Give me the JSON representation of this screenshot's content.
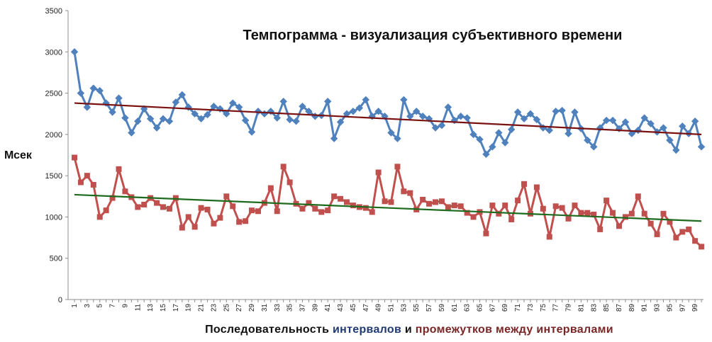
{
  "chart_data": {
    "type": "line",
    "title": "Темпограмма - визуализация субъективного времени",
    "ylabel": "Мсек",
    "xlabel_parts": [
      {
        "text": "Последовательность ",
        "color": "#111111"
      },
      {
        "text": "интервалов",
        "color": "#1f3a73"
      },
      {
        "text": " и ",
        "color": "#111111"
      },
      {
        "text": "промежутков между интервалами",
        "color": "#7a2626"
      }
    ],
    "ylim": [
      0,
      3500
    ],
    "yticks": [
      0,
      500,
      1000,
      1500,
      2000,
      2500,
      3000,
      3500
    ],
    "x_range": [
      1,
      100
    ],
    "xtick_step": 2,
    "grid": false,
    "legend": "none",
    "series": [
      {
        "color": "#4f81bd",
        "marker": "diamond",
        "values": [
          3000,
          2500,
          2330,
          2560,
          2530,
          2380,
          2270,
          2440,
          2200,
          2020,
          2160,
          2310,
          2190,
          2080,
          2190,
          2160,
          2390,
          2480,
          2330,
          2250,
          2190,
          2240,
          2340,
          2310,
          2250,
          2380,
          2330,
          2170,
          2030,
          2280,
          2250,
          2280,
          2200,
          2400,
          2180,
          2160,
          2340,
          2280,
          2220,
          2230,
          2400,
          1950,
          2150,
          2250,
          2280,
          2320,
          2420,
          2220,
          2280,
          2220,
          2020,
          1950,
          2420,
          2220,
          2280,
          2220,
          2190,
          2080,
          2110,
          2330,
          2170,
          2220,
          2200,
          2000,
          1940,
          1760,
          1850,
          2020,
          1900,
          2060,
          2270,
          2190,
          2250,
          2180,
          2080,
          2050,
          2280,
          2290,
          2010,
          2270,
          2070,
          1930,
          1850,
          2080,
          2170,
          2170,
          2070,
          2150,
          2010,
          2050,
          2200,
          2130,
          2030,
          2080,
          1930,
          1810,
          2100,
          2010,
          2160,
          1850
        ]
      },
      {
        "color": "#c0504d",
        "marker": "square",
        "values": [
          1720,
          1420,
          1500,
          1390,
          1000,
          1080,
          1230,
          1580,
          1310,
          1240,
          1120,
          1150,
          1230,
          1170,
          1120,
          1100,
          1230,
          870,
          1000,
          880,
          1110,
          1090,
          920,
          990,
          1250,
          1130,
          940,
          950,
          1080,
          1070,
          1170,
          1350,
          1070,
          1610,
          1420,
          1160,
          1100,
          1170,
          1100,
          1060,
          1080,
          1250,
          1220,
          1180,
          1140,
          1120,
          1110,
          1060,
          1540,
          1190,
          1180,
          1610,
          1310,
          1290,
          1090,
          1210,
          1160,
          1180,
          1190,
          1120,
          1140,
          1130,
          1050,
          1000,
          1060,
          800,
          1140,
          1040,
          1140,
          970,
          1200,
          1400,
          1040,
          1360,
          1100,
          760,
          1130,
          1110,
          980,
          1140,
          1050,
          1050,
          1030,
          850,
          1200,
          1050,
          890,
          1000,
          1040,
          1250,
          1040,
          920,
          790,
          1040,
          940,
          750,
          820,
          850,
          710,
          640
        ]
      }
    ],
    "trendlines": [
      {
        "color": "#7b1212",
        "from": [
          1,
          2380
        ],
        "to": [
          100,
          2000
        ]
      },
      {
        "color": "#1e6b1e",
        "from": [
          1,
          1270
        ],
        "to": [
          100,
          950
        ]
      }
    ]
  }
}
